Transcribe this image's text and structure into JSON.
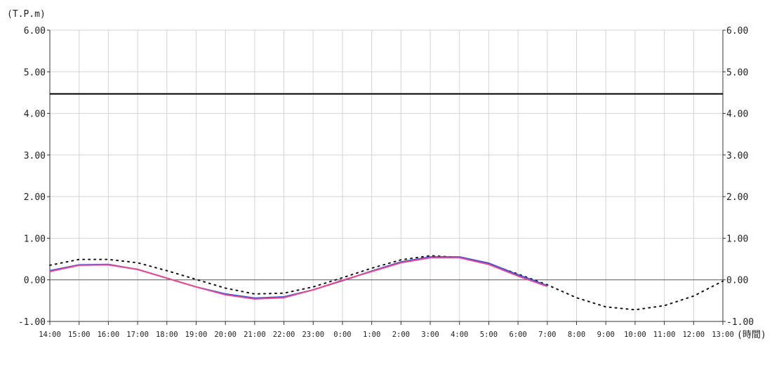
{
  "chart_data": {
    "type": "line",
    "ylabel": "(T.P.m)",
    "xlabel": "(時間)",
    "ylim": [
      -1.0,
      6.0
    ],
    "yticks": [
      "6.00",
      "5.00",
      "4.00",
      "3.00",
      "2.00",
      "1.00",
      "0.00",
      "-1.00"
    ],
    "categories": [
      "14:00",
      "15:00",
      "16:00",
      "17:00",
      "18:00",
      "19:00",
      "20:00",
      "21:00",
      "22:00",
      "23:00",
      "0:00",
      "1:00",
      "2:00",
      "3:00",
      "4:00",
      "5:00",
      "6:00",
      "7:00",
      "8:00",
      "9:00",
      "10:00",
      "11:00",
      "12:00",
      "13:00"
    ],
    "grid": true,
    "reference_line": {
      "value": 4.47,
      "color": "#000000"
    },
    "series": [
      {
        "style": "dotted",
        "color": "#111111",
        "values": [
          0.35,
          0.49,
          0.49,
          0.41,
          0.22,
          0.01,
          -0.2,
          -0.34,
          -0.32,
          -0.17,
          0.05,
          0.28,
          0.48,
          0.58,
          0.54,
          0.38,
          0.14,
          -0.12,
          -0.43,
          -0.65,
          -0.72,
          -0.62,
          -0.39,
          -0.03
        ]
      },
      {
        "style": "solid",
        "color": "#3b4fd6",
        "values": [
          0.22,
          0.36,
          0.37,
          0.25,
          0.04,
          -0.17,
          -0.34,
          -0.44,
          -0.41,
          -0.24,
          -0.02,
          0.21,
          0.43,
          0.55,
          0.55,
          0.4,
          0.12,
          -0.14,
          null,
          null,
          null,
          null,
          null,
          null
        ]
      },
      {
        "style": "solid",
        "color": "#ea4a8f",
        "values": [
          0.2,
          0.35,
          0.36,
          0.25,
          0.04,
          -0.17,
          -0.36,
          -0.46,
          -0.43,
          -0.24,
          -0.01,
          0.2,
          0.41,
          0.53,
          0.53,
          0.37,
          0.09,
          -0.16,
          null,
          null,
          null,
          null,
          null,
          null
        ]
      }
    ]
  }
}
